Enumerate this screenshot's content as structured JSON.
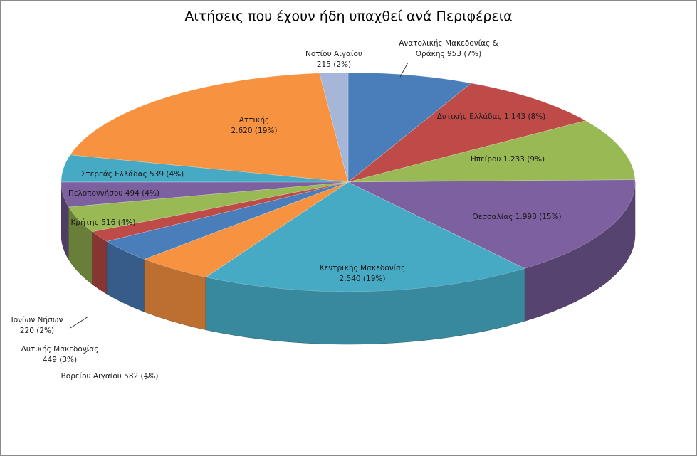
{
  "chart_data": {
    "type": "pie",
    "title": "Αιτήσεις που έχουν ήδη υπαχθεί ανά Περιφέρεια",
    "legend": "none",
    "slices": [
      {
        "label": "Ανατολικής Μακεδονίας & Θράκης",
        "value": 953,
        "value_text": "953",
        "pct_text": "(7%)",
        "color": "#4a7ebb",
        "label_lines": [
          "Ανατολικής Μακεδονίας  &",
          "Θράκης 953 (7%)"
        ]
      },
      {
        "label": "Δυτικής Ελλάδας",
        "value": 1143,
        "value_text": "1.143",
        "pct_text": "(8%)",
        "color": "#be4b48",
        "label_lines": [
          "Δυτικής Ελλάδας  1.143 (8%)"
        ]
      },
      {
        "label": "Ηπείρου",
        "value": 1233,
        "value_text": "1.233",
        "pct_text": "(9%)",
        "color": "#98b954",
        "label_lines": [
          "Ηπείρου 1.233 (9%)"
        ]
      },
      {
        "label": "Θεσσαλίας",
        "value": 1998,
        "value_text": "1.998",
        "pct_text": "(15%)",
        "color": "#7d60a0",
        "label_lines": [
          "Θεσσαλίας  1.998 (15%)"
        ]
      },
      {
        "label": "Κεντρικής Μακεδονίας",
        "value": 2540,
        "value_text": "2.540",
        "pct_text": "(19%)",
        "color": "#46aac5",
        "label_lines": [
          "Κεντρικής Μακεδονίας",
          "2.540 (19%)"
        ]
      },
      {
        "label": "Βορείου Αιγαίου",
        "value": 582,
        "value_text": "582",
        "pct_text": "(4%)",
        "color": "#f69240",
        "label_lines": [
          "Βορείου Αιγαίου 582 (4%)"
        ]
      },
      {
        "label": "Δυτικής Μακεδονίας",
        "value": 449,
        "value_text": "449",
        "pct_text": "(3%)",
        "color": "#4a7ebb",
        "label_lines": [
          "Δυτικής Μακεδονίας",
          "449 (3%)"
        ]
      },
      {
        "label": "Ιονίων Νήσων",
        "value": 220,
        "value_text": "220",
        "pct_text": "(2%)",
        "color": "#be4b48",
        "label_lines": [
          "Ιονίων Νήσων",
          "220 (2%)"
        ]
      },
      {
        "label": "Κρήτης",
        "value": 516,
        "value_text": "516",
        "pct_text": "(4%)",
        "color": "#98b954",
        "label_lines": [
          "Κρήτης 516 (4%)"
        ]
      },
      {
        "label": "Πελοποννήσου",
        "value": 494,
        "value_text": "494",
        "pct_text": "(4%)",
        "color": "#7d60a0",
        "label_lines": [
          "Πελοποννήσου 494 (4%)"
        ]
      },
      {
        "label": "Στερεάς Ελλάδας",
        "value": 539,
        "value_text": "539",
        "pct_text": "(4%)",
        "color": "#46aac5",
        "label_lines": [
          "Στερεάς Ελλάδας  539 (4%)"
        ]
      },
      {
        "label": "Αττικής",
        "value": 2620,
        "value_text": "2.620",
        "pct_text": "(19%)",
        "color": "#f69240",
        "label_lines": [
          "Αττικής",
          "2.620 (19%)"
        ]
      },
      {
        "label": "Νοτίου Αιγαίου",
        "value": 215,
        "value_text": "215",
        "pct_text": "(2%)",
        "color": "#a5b6d8",
        "label_lines": [
          "Νοτίου Αιγαίου",
          "215 (2%)"
        ]
      }
    ]
  }
}
